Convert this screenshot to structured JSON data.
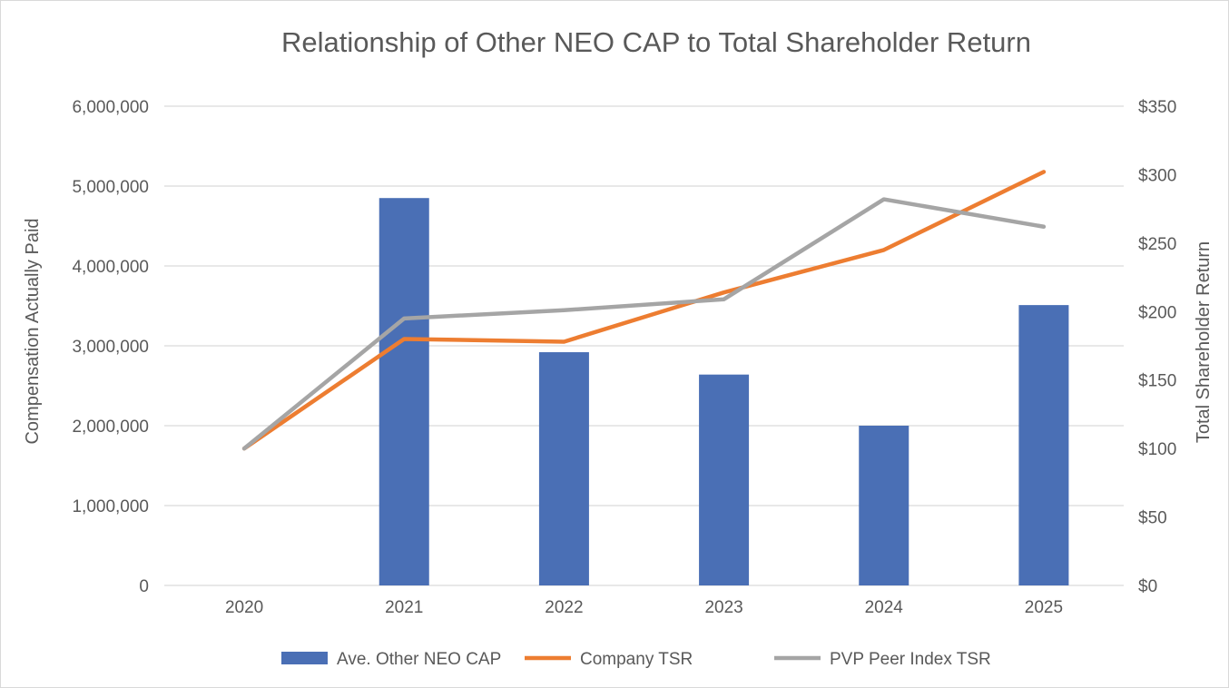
{
  "chart_data": {
    "type": "bar",
    "title": "Relationship of Other NEO CAP to Total Shareholder Return",
    "categories": [
      "2020",
      "2021",
      "2022",
      "2023",
      "2024",
      "2025"
    ],
    "y_left": {
      "label": "Compensation Actually Paid",
      "lim": [
        0,
        6000000
      ],
      "ticks": [
        0,
        1000000,
        2000000,
        3000000,
        4000000,
        5000000,
        6000000
      ],
      "tick_labels": [
        "0",
        "1,000,000",
        "2,000,000",
        "3,000,000",
        "4,000,000",
        "5,000,000",
        "6,000,000"
      ]
    },
    "y_right": {
      "label": "Total Shareholder Return",
      "lim": [
        0,
        350
      ],
      "ticks": [
        0,
        50,
        100,
        150,
        200,
        250,
        300,
        350
      ],
      "tick_labels": [
        "$0",
        "$50",
        "$100",
        "$150",
        "$200",
        "$250",
        "$300",
        "$350"
      ]
    },
    "series": [
      {
        "name": "Ave. Other NEO CAP",
        "type": "bar",
        "axis": "left",
        "color": "#4a6fb5",
        "values": [
          null,
          4850000,
          2920000,
          2640000,
          2000000,
          3510000
        ]
      },
      {
        "name": "Company TSR",
        "type": "line",
        "axis": "right",
        "color": "#ed7d31",
        "values": [
          100,
          180,
          178,
          214,
          245,
          302
        ]
      },
      {
        "name": "PVP Peer Index TSR",
        "type": "line",
        "axis": "right",
        "color": "#a5a5a5",
        "values": [
          100,
          195,
          201,
          209,
          282,
          262
        ]
      }
    ],
    "grid": true,
    "legend_position": "bottom"
  }
}
